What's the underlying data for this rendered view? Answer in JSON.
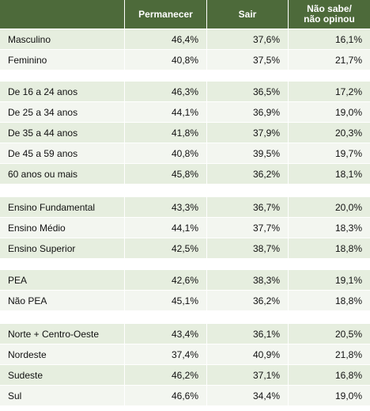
{
  "table": {
    "columns": [
      "Permanecer",
      "Sair",
      "Não sabe/ não opinou"
    ],
    "groups": [
      {
        "rows": [
          [
            "Masculino",
            "46,4%",
            "37,6%",
            "16,1%"
          ],
          [
            "Feminino",
            "40,8%",
            "37,5%",
            "21,7%"
          ]
        ]
      },
      {
        "rows": [
          [
            "De 16 a 24 anos",
            "46,3%",
            "36,5%",
            "17,2%"
          ],
          [
            "De 25 a 34 anos",
            "44,1%",
            "36,9%",
            "19,0%"
          ],
          [
            "De 35 a 44 anos",
            "41,8%",
            "37,9%",
            "20,3%"
          ],
          [
            "De 45 a 59 anos",
            "40,8%",
            "39,5%",
            "19,7%"
          ],
          [
            "60 anos ou mais",
            "45,8%",
            "36,2%",
            "18,1%"
          ]
        ]
      },
      {
        "rows": [
          [
            "Ensino Fundamental",
            "43,3%",
            "36,7%",
            "20,0%"
          ],
          [
            "Ensino Médio",
            "44,1%",
            "37,7%",
            "18,3%"
          ],
          [
            "Ensino Superior",
            "42,5%",
            "38,7%",
            "18,8%"
          ]
        ]
      },
      {
        "rows": [
          [
            "PEA",
            "42,6%",
            "38,3%",
            "19,1%"
          ],
          [
            "Não PEA",
            "45,1%",
            "36,2%",
            "18,8%"
          ]
        ]
      },
      {
        "rows": [
          [
            "Norte + Centro-Oeste",
            "43,4%",
            "36,1%",
            "20,5%"
          ],
          [
            "Nordeste",
            "37,4%",
            "40,9%",
            "21,8%"
          ],
          [
            "Sudeste",
            "46,2%",
            "37,1%",
            "16,8%"
          ],
          [
            "Sul",
            "46,6%",
            "34,4%",
            "19,0%"
          ]
        ]
      }
    ]
  }
}
